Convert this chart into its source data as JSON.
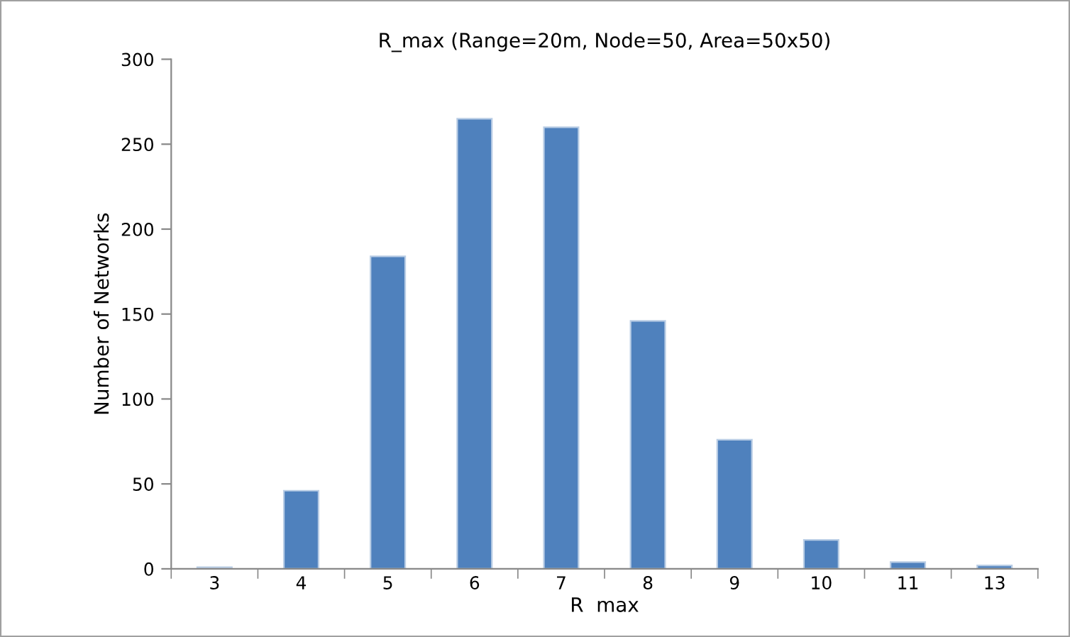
{
  "chart_data": {
    "type": "bar",
    "title": "R_max (Range=20m, Node=50, Area=50x50)",
    "xlabel": "R  max",
    "ylabel": "Number of Networks",
    "categories": [
      "3",
      "4",
      "5",
      "6",
      "7",
      "8",
      "9",
      "10",
      "11",
      "13"
    ],
    "values": [
      1,
      46,
      184,
      265,
      260,
      146,
      76,
      17,
      4,
      2
    ],
    "color": "#4f81bd",
    "ylim": [
      0,
      300
    ],
    "yticks": [
      0,
      50,
      100,
      150,
      200,
      250,
      300
    ],
    "grid": false,
    "legend": false
  }
}
